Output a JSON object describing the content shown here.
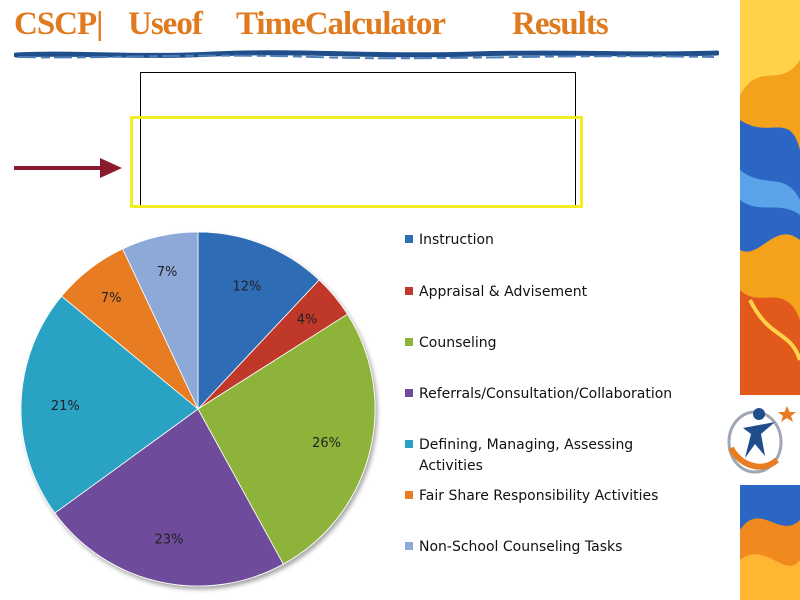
{
  "header": {
    "title_words": [
      "CSCP|",
      "Useof",
      "TimeCalculator",
      "Results"
    ],
    "title_color": "#e07a1f",
    "rule_color": "#1f4e8a"
  },
  "text_box": {
    "text": ""
  },
  "highlight": {
    "color": "#f2ee22"
  },
  "arrow": {
    "color": "#8b1a2c"
  },
  "chart_data": {
    "type": "pie",
    "title": "",
    "start_angle_deg": 0,
    "direction": "clockwise",
    "legend_position": "right",
    "categories": [
      "Instruction",
      "Appraisal & Advisement",
      "Counseling",
      "Referrals/Consultation/Collaboration",
      "Defining, Managing, Assessing Activities",
      "Fair Share Responsibility Activities",
      "Non-School Counseling Tasks"
    ],
    "values": [
      12,
      4,
      26,
      23,
      21,
      7,
      7
    ],
    "labels": [
      "12%",
      "4%",
      "26%",
      "23%",
      "21%",
      "7%",
      "7%"
    ],
    "colors": [
      "#2d6db5",
      "#c0392b",
      "#8db33a",
      "#6e4b9b",
      "#2aa2c4",
      "#e77c20",
      "#8da9d8"
    ]
  }
}
